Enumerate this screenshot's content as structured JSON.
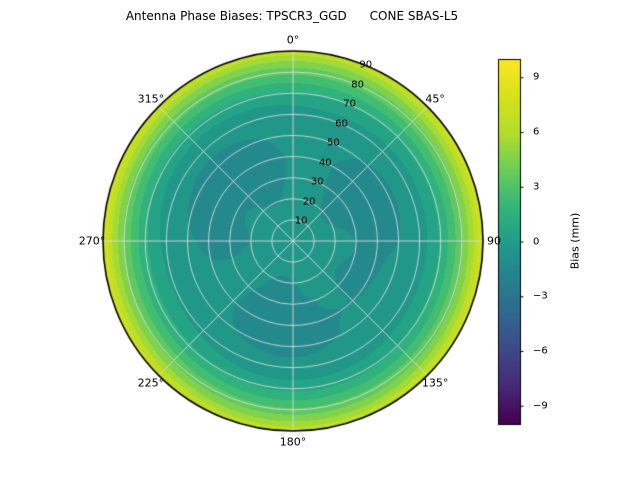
{
  "chart_data": {
    "type": "heatmap",
    "projection": "polar",
    "title": "Antenna Phase Biases: TPSCR3_GGD      CONE SBAS-L5",
    "theta_ticks": [
      {
        "angle_deg": 0,
        "label": "0°"
      },
      {
        "angle_deg": 45,
        "label": "45°"
      },
      {
        "angle_deg": 90,
        "label": "90"
      },
      {
        "angle_deg": 135,
        "label": "135°"
      },
      {
        "angle_deg": 180,
        "label": "180°"
      },
      {
        "angle_deg": 225,
        "label": "225°"
      },
      {
        "angle_deg": 270,
        "label": "270°"
      },
      {
        "angle_deg": 315,
        "label": "315°"
      }
    ],
    "r_ticks": [
      10,
      20,
      30,
      40,
      50,
      60,
      70,
      80,
      90
    ],
    "r_label_azimuth_deg": 22.5,
    "radial_profile": {
      "zenith_deg": [
        0,
        10,
        20,
        30,
        40,
        50,
        60,
        65,
        70,
        75,
        80,
        85,
        90
      ],
      "bias_mm": [
        -0.3,
        -0.5,
        -0.9,
        -1.1,
        -1.15,
        -1.0,
        -0.5,
        0.1,
        1.0,
        2.2,
        3.6,
        5.3,
        7.4
      ]
    },
    "contour_step_mm": 1,
    "colorbar": {
      "label": "Bias (mm)",
      "vmin": -10,
      "vmax": 10,
      "ticks": [
        {
          "value": 9,
          "label": "9"
        },
        {
          "value": 6,
          "label": "6"
        },
        {
          "value": 3,
          "label": "3"
        },
        {
          "value": 0,
          "label": "0"
        },
        {
          "value": -3,
          "label": "−3"
        },
        {
          "value": -6,
          "label": "−6"
        },
        {
          "value": -9,
          "label": "−9"
        }
      ],
      "colormap": "viridis",
      "colormap_stops": [
        "#440154",
        "#482878",
        "#3e4989",
        "#31688e",
        "#26828e",
        "#1f9e89",
        "#35b779",
        "#6ece58",
        "#b5de2b",
        "#d8e219",
        "#fde725"
      ]
    },
    "grid_color": "#dedede",
    "outline_color": "#000000"
  }
}
